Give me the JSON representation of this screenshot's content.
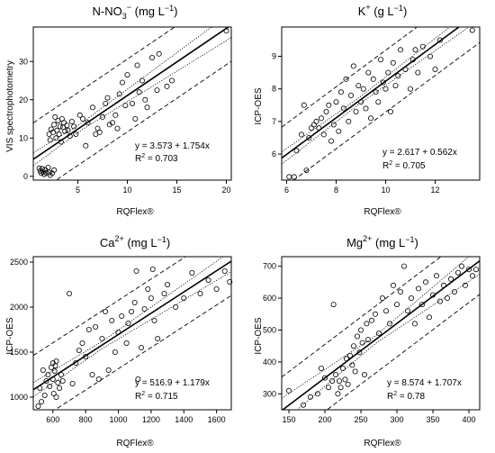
{
  "chart_data": [
    {
      "type": "scatter",
      "title_main": "N-NO",
      "title_sub": "3",
      "title_sup": "−",
      "title_units": "(mg L",
      "title_units_sup": "−1",
      "title_units_close": ")",
      "xlabel": "RQFlex®",
      "ylabel": "VIS spectrophotometry",
      "xlim": [
        0.5,
        20.5
      ],
      "ylim": [
        -1,
        39
      ],
      "xticks": [
        5,
        10,
        15,
        20
      ],
      "yticks": [
        0,
        10,
        20,
        30
      ],
      "equation": "y = 3.573 + 1.754x",
      "r2": "R",
      "r2_sup": "2",
      "r2_value": " = 0.703",
      "fit": {
        "intercept": 3.573,
        "slope": 1.754
      },
      "conf_band": {
        "x_mean": 5.4,
        "base": 0.9,
        "k": 0.09
      },
      "pred_band": {
        "offset": 9.5
      },
      "points": [
        [
          1.1,
          2.1
        ],
        [
          1.2,
          1.4
        ],
        [
          1.3,
          0.8
        ],
        [
          1.4,
          2.0
        ],
        [
          1.5,
          1.1
        ],
        [
          1.6,
          0.5
        ],
        [
          1.7,
          1.7
        ],
        [
          1.8,
          0.9
        ],
        [
          2.0,
          2.3
        ],
        [
          2.1,
          1.0
        ],
        [
          2.2,
          0.3
        ],
        [
          2.4,
          0.8
        ],
        [
          2.6,
          1.6
        ],
        [
          2.1,
          11.0
        ],
        [
          2.2,
          9.5
        ],
        [
          2.3,
          12.3
        ],
        [
          2.5,
          11.5
        ],
        [
          2.6,
          13.5
        ],
        [
          2.7,
          15.5
        ],
        [
          2.8,
          10.0
        ],
        [
          2.9,
          12.0
        ],
        [
          3.0,
          14.5
        ],
        [
          3.1,
          11.0
        ],
        [
          3.2,
          13.0
        ],
        [
          3.3,
          9.0
        ],
        [
          3.4,
          15.0
        ],
        [
          3.5,
          12.8
        ],
        [
          3.6,
          14.0
        ],
        [
          3.7,
          11.8
        ],
        [
          3.9,
          13.3
        ],
        [
          4.0,
          12.0
        ],
        [
          4.2,
          10.5
        ],
        [
          4.4,
          14.3
        ],
        [
          4.6,
          13.0
        ],
        [
          4.8,
          11.0
        ],
        [
          5.2,
          16.0
        ],
        [
          5.5,
          15.0
        ],
        [
          5.8,
          8.0
        ],
        [
          6.0,
          14.0
        ],
        [
          6.5,
          18.0
        ],
        [
          6.8,
          11.0
        ],
        [
          7.0,
          12.5
        ],
        [
          7.2,
          11.5
        ],
        [
          7.5,
          15.5
        ],
        [
          7.8,
          19.0
        ],
        [
          8.0,
          20.5
        ],
        [
          8.2,
          13.5
        ],
        [
          8.5,
          14.0
        ],
        [
          8.8,
          16.0
        ],
        [
          9.0,
          12.5
        ],
        [
          9.2,
          21.5
        ],
        [
          9.5,
          24.5
        ],
        [
          9.8,
          18.5
        ],
        [
          10.0,
          26.5
        ],
        [
          10.5,
          19.0
        ],
        [
          10.8,
          15.0
        ],
        [
          11.0,
          29.0
        ],
        [
          11.2,
          22.0
        ],
        [
          11.5,
          25.0
        ],
        [
          11.8,
          20.0
        ],
        [
          12.0,
          18.0
        ],
        [
          12.5,
          31.0
        ],
        [
          13.0,
          22.5
        ],
        [
          13.2,
          32.0
        ],
        [
          14.0,
          23.5
        ],
        [
          14.5,
          25.0
        ],
        [
          20.0,
          38.0
        ]
      ]
    },
    {
      "type": "scatter",
      "title_main": "K",
      "title_sup": "+",
      "title_units": "(g L",
      "title_units_sup": "−1",
      "title_units_close": ")",
      "xlabel": "RQFlex®",
      "ylabel": "ICP-OES",
      "xlim": [
        5.8,
        13.8
      ],
      "ylim": [
        5.2,
        9.9
      ],
      "xticks": [
        6,
        8,
        10,
        12
      ],
      "yticks": [
        6,
        7,
        8,
        9
      ],
      "equation": "y = 2.617 + 0.562x",
      "r2": "R",
      "r2_sup": "2",
      "r2_value": " = 0.705",
      "fit": {
        "intercept": 2.617,
        "slope": 0.562
      },
      "conf_band": {
        "x_mean": 8.9,
        "base": 0.1,
        "k": 0.05
      },
      "pred_band": {
        "offset": 0.95
      },
      "points": [
        [
          6.1,
          5.3
        ],
        [
          6.3,
          5.3
        ],
        [
          6.4,
          6.1
        ],
        [
          6.6,
          6.6
        ],
        [
          6.7,
          7.5
        ],
        [
          6.8,
          5.5
        ],
        [
          6.9,
          6.5
        ],
        [
          7.0,
          6.8
        ],
        [
          7.1,
          6.9
        ],
        [
          7.2,
          7.0
        ],
        [
          7.3,
          6.8
        ],
        [
          7.4,
          7.1
        ],
        [
          7.5,
          6.6
        ],
        [
          7.6,
          7.3
        ],
        [
          7.7,
          7.5
        ],
        [
          7.8,
          6.4
        ],
        [
          7.9,
          6.9
        ],
        [
          8.0,
          7.6
        ],
        [
          8.1,
          6.7
        ],
        [
          8.2,
          7.9
        ],
        [
          8.3,
          7.4
        ],
        [
          8.4,
          8.3
        ],
        [
          8.5,
          7.0
        ],
        [
          8.6,
          7.8
        ],
        [
          8.7,
          8.7
        ],
        [
          8.8,
          7.3
        ],
        [
          8.9,
          8.1
        ],
        [
          9.0,
          7.6
        ],
        [
          9.1,
          8.0
        ],
        [
          9.2,
          7.4
        ],
        [
          9.3,
          8.5
        ],
        [
          9.4,
          7.1
        ],
        [
          9.5,
          8.3
        ],
        [
          9.6,
          7.9
        ],
        [
          9.7,
          7.6
        ],
        [
          9.8,
          8.9
        ],
        [
          9.9,
          8.2
        ],
        [
          10.0,
          8.0
        ],
        [
          10.1,
          8.5
        ],
        [
          10.2,
          7.3
        ],
        [
          10.3,
          8.8
        ],
        [
          10.4,
          8.1
        ],
        [
          10.5,
          8.4
        ],
        [
          10.6,
          9.2
        ],
        [
          10.8,
          8.6
        ],
        [
          11.0,
          8.0
        ],
        [
          11.1,
          8.9
        ],
        [
          11.2,
          9.2
        ],
        [
          11.3,
          8.5
        ],
        [
          11.5,
          9.3
        ],
        [
          11.8,
          9.0
        ],
        [
          12.0,
          8.6
        ],
        [
          12.2,
          9.5
        ],
        [
          13.5,
          9.8
        ]
      ]
    },
    {
      "type": "scatter",
      "title_main": "Ca",
      "title_sup": "2+",
      "title_units": "(mg L",
      "title_units_sup": "−1",
      "title_units_close": ")",
      "xlabel": "RQFlex®",
      "ylabel": "ICP-OES",
      "xlim": [
        480,
        1690
      ],
      "ylim": [
        860,
        2560
      ],
      "xticks": [
        600,
        800,
        1000,
        1200,
        1400,
        1600
      ],
      "yticks": [
        1000,
        1500,
        2000,
        2500
      ],
      "equation": "y = 516.9 + 1.179x",
      "r2": "R",
      "r2_sup": "2",
      "r2_value": " = 0.715",
      "fit": {
        "intercept": 516.9,
        "slope": 1.179
      },
      "conf_band": {
        "x_mean": 900,
        "base": 40,
        "k": 0.08
      },
      "pred_band": {
        "offset": 380
      },
      "points": [
        [
          510,
          900
        ],
        [
          520,
          1100
        ],
        [
          530,
          950
        ],
        [
          540,
          1300
        ],
        [
          550,
          1020
        ],
        [
          560,
          1180
        ],
        [
          570,
          1250
        ],
        [
          580,
          1120
        ],
        [
          590,
          1330
        ],
        [
          600,
          1200
        ],
        [
          600,
          1380
        ],
        [
          605,
          1040
        ],
        [
          610,
          1290
        ],
        [
          615,
          1350
        ],
        [
          620,
          1000
        ],
        [
          620,
          1400
        ],
        [
          630,
          1160
        ],
        [
          640,
          1100
        ],
        [
          650,
          1250
        ],
        [
          660,
          1180
        ],
        [
          700,
          2150
        ],
        [
          720,
          1150
        ],
        [
          740,
          1380
        ],
        [
          760,
          1520
        ],
        [
          780,
          1600
        ],
        [
          800,
          1450
        ],
        [
          820,
          1750
        ],
        [
          840,
          1250
        ],
        [
          860,
          1780
        ],
        [
          880,
          1200
        ],
        [
          900,
          1650
        ],
        [
          920,
          1950
        ],
        [
          940,
          1300
        ],
        [
          960,
          1850
        ],
        [
          980,
          1500
        ],
        [
          1000,
          1720
        ],
        [
          1020,
          1900
        ],
        [
          1050,
          1600
        ],
        [
          1060,
          1820
        ],
        [
          1080,
          1950
        ],
        [
          1100,
          2050
        ],
        [
          1110,
          2400
        ],
        [
          1120,
          1200
        ],
        [
          1140,
          1550
        ],
        [
          1160,
          1980
        ],
        [
          1180,
          2200
        ],
        [
          1200,
          2100
        ],
        [
          1210,
          2420
        ],
        [
          1220,
          1850
        ],
        [
          1240,
          1650
        ],
        [
          1280,
          2150
        ],
        [
          1300,
          2250
        ],
        [
          1350,
          2000
        ],
        [
          1400,
          2100
        ],
        [
          1450,
          2380
        ],
        [
          1500,
          2150
        ],
        [
          1550,
          2300
        ],
        [
          1600,
          2200
        ],
        [
          1650,
          2400
        ],
        [
          1680,
          2280
        ]
      ]
    },
    {
      "type": "scatter",
      "title_main": "Mg",
      "title_sup": "2+",
      "title_units": "(mg L",
      "title_units_sup": "−1",
      "title_units_close": ")",
      "xlabel": "RQFlex®",
      "ylabel": "ICP-OES",
      "xlim": [
        140,
        415
      ],
      "ylim": [
        250,
        730
      ],
      "xticks": [
        150,
        200,
        250,
        300,
        350,
        400
      ],
      "yticks": [
        300,
        400,
        500,
        600,
        700
      ],
      "equation": "y = 8.574 + 1.707x",
      "r2": "R",
      "r2_sup": "2",
      "r2_value": " = 0.78",
      "fit": {
        "intercept": 8.574,
        "slope": 1.707
      },
      "conf_band": {
        "x_mean": 270,
        "base": 12,
        "k": 0.12
      },
      "pred_band": {
        "offset": 105
      },
      "points": [
        [
          150,
          310
        ],
        [
          170,
          265
        ],
        [
          180,
          290
        ],
        [
          190,
          300
        ],
        [
          195,
          380
        ],
        [
          200,
          350
        ],
        [
          205,
          320
        ],
        [
          210,
          340
        ],
        [
          212,
          580
        ],
        [
          215,
          360
        ],
        [
          218,
          300
        ],
        [
          220,
          340
        ],
        [
          222,
          320
        ],
        [
          225,
          380
        ],
        [
          228,
          345
        ],
        [
          230,
          410
        ],
        [
          232,
          330
        ],
        [
          235,
          420
        ],
        [
          238,
          390
        ],
        [
          240,
          450
        ],
        [
          242,
          370
        ],
        [
          245,
          480
        ],
        [
          248,
          430
        ],
        [
          250,
          500
        ],
        [
          252,
          460
        ],
        [
          255,
          360
        ],
        [
          258,
          520
        ],
        [
          260,
          470
        ],
        [
          265,
          530
        ],
        [
          270,
          550
        ],
        [
          275,
          490
        ],
        [
          280,
          600
        ],
        [
          285,
          560
        ],
        [
          290,
          520
        ],
        [
          295,
          640
        ],
        [
          300,
          580
        ],
        [
          305,
          620
        ],
        [
          310,
          700
        ],
        [
          315,
          560
        ],
        [
          320,
          600
        ],
        [
          325,
          520
        ],
        [
          330,
          630
        ],
        [
          335,
          580
        ],
        [
          340,
          650
        ],
        [
          345,
          540
        ],
        [
          350,
          610
        ],
        [
          355,
          670
        ],
        [
          360,
          590
        ],
        [
          365,
          640
        ],
        [
          370,
          600
        ],
        [
          375,
          660
        ],
        [
          380,
          620
        ],
        [
          385,
          680
        ],
        [
          390,
          700
        ],
        [
          395,
          640
        ],
        [
          400,
          690
        ],
        [
          405,
          670
        ],
        [
          410,
          690
        ]
      ]
    }
  ]
}
